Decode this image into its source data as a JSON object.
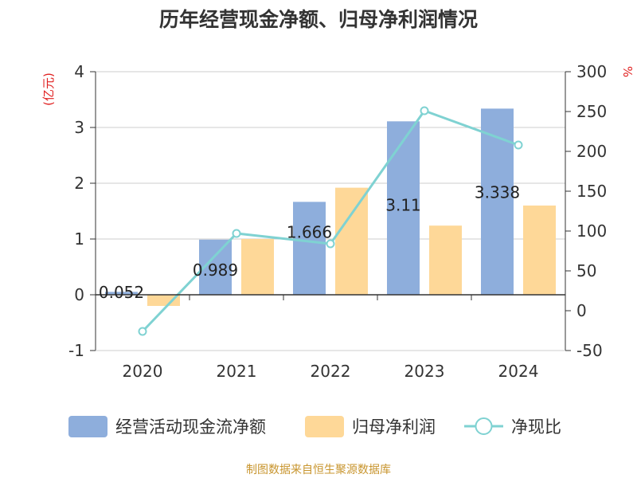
{
  "chart_data": {
    "type": "bar",
    "title": "历年经营现金净额、归母净利润情况",
    "categories": [
      "2020",
      "2021",
      "2022",
      "2023",
      "2024"
    ],
    "left_axis": {
      "unit_label": "(亿元)",
      "ylim": [
        -1,
        4
      ],
      "ticks": [
        "4",
        "3",
        "2",
        "1",
        "0",
        "-1"
      ]
    },
    "right_axis": {
      "unit_label": "%",
      "ylim": [
        -50,
        300
      ],
      "ticks": [
        "300",
        "250",
        "200",
        "150",
        "100",
        "50",
        "0",
        "-50"
      ]
    },
    "series": [
      {
        "name": "经营活动现金流净额",
        "type": "bar",
        "axis": "left",
        "color": "#8eaedc",
        "values": [
          0.052,
          0.989,
          1.666,
          3.11,
          3.338
        ],
        "data_labels": [
          "0.052",
          "0.989",
          "1.666",
          "3.11",
          "3.338"
        ]
      },
      {
        "name": "归母净利润",
        "type": "bar",
        "axis": "left",
        "color": "#fed898",
        "values": [
          -0.2,
          1.0,
          1.92,
          1.24,
          1.6
        ]
      },
      {
        "name": "净现比",
        "type": "line",
        "axis": "right",
        "color": "#7fd2d2",
        "values": [
          -26,
          97,
          84,
          251,
          208
        ]
      }
    ],
    "grid": true,
    "legend": "bottom"
  },
  "source_note": "制图数据来自恒生聚源数据库"
}
